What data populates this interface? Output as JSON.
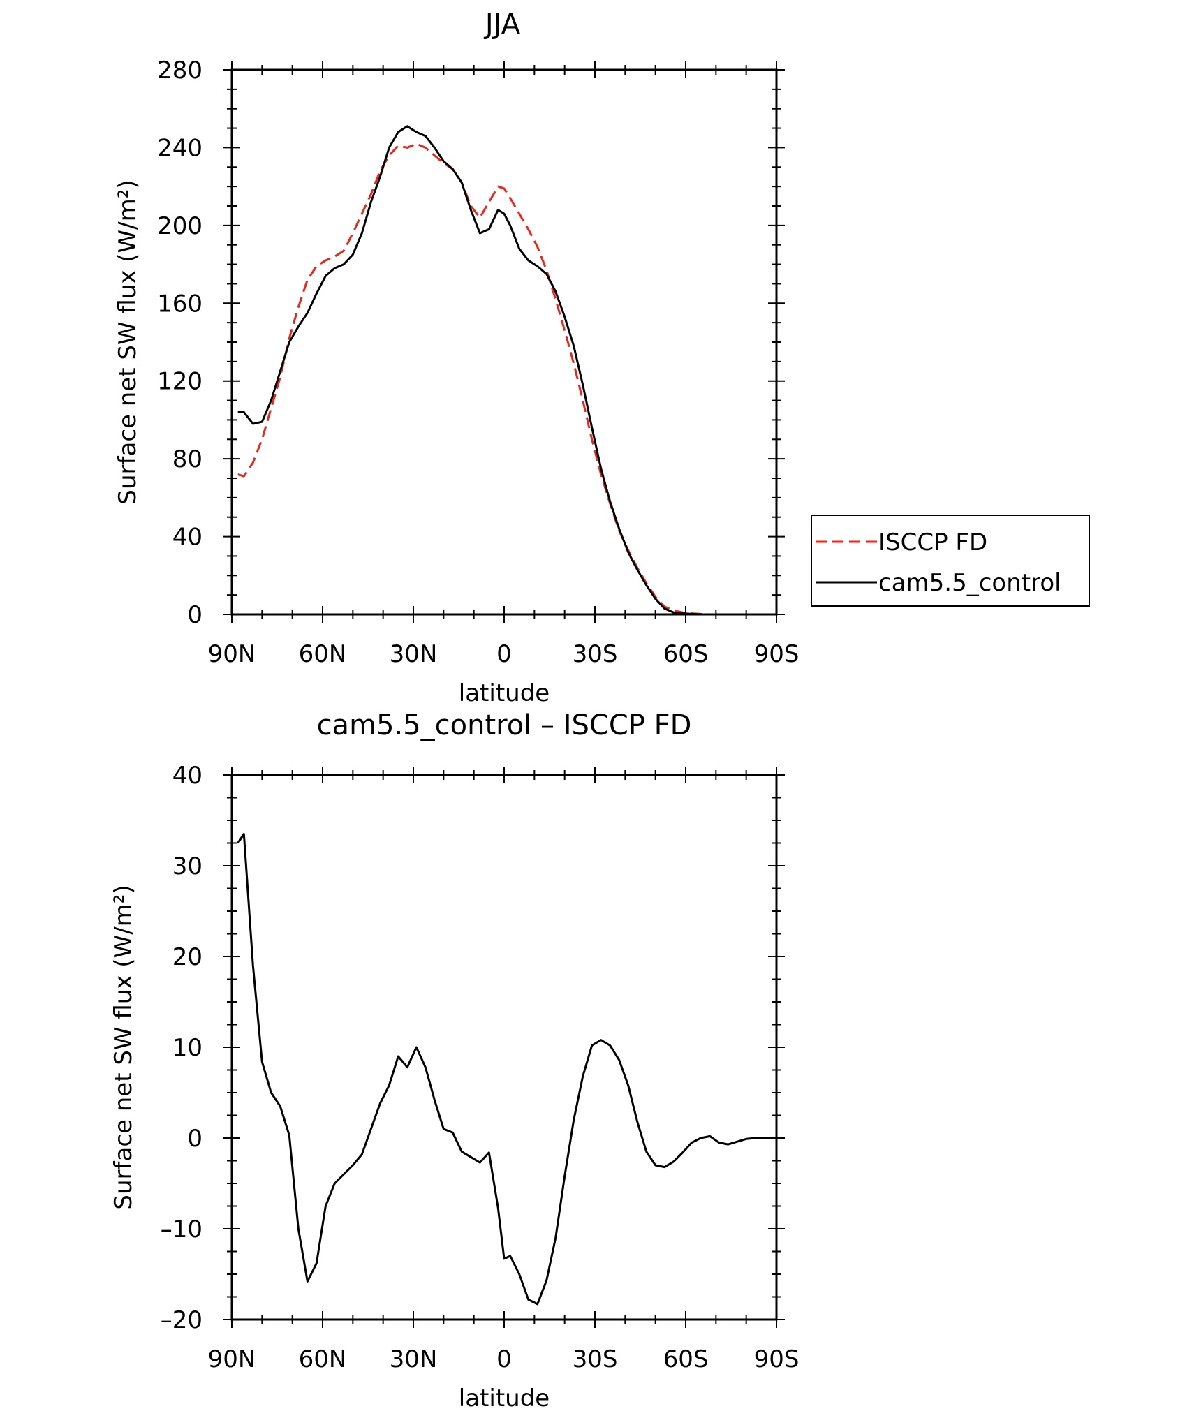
{
  "chart_data": [
    {
      "type": "line",
      "title": "JJA",
      "xlabel": "latitude",
      "ylabel": "Surface net SW flux (W/m²)",
      "xlim": [
        90,
        -90
      ],
      "ylim": [
        0,
        280
      ],
      "x_ticks": [
        90,
        60,
        30,
        0,
        -30,
        -60,
        -90
      ],
      "x_tick_labels": [
        "90N",
        "60N",
        "30N",
        "0",
        "30S",
        "60S",
        "90S"
      ],
      "y_ticks": [
        0,
        40,
        80,
        120,
        160,
        200,
        240,
        280
      ],
      "y_tick_labels": [
        "0",
        "40",
        "80",
        "120",
        "160",
        "200",
        "240",
        "280"
      ],
      "legend_position": "outside-right",
      "series": [
        {
          "name": "ISCCP FD",
          "color": "#e8261c",
          "dash": "dashed",
          "x": [
            88,
            86,
            83,
            80,
            77,
            74,
            71,
            68,
            65,
            62,
            59,
            56,
            53,
            50,
            47,
            44,
            41,
            38,
            35,
            32,
            29,
            26,
            23,
            20,
            17,
            14,
            11,
            8,
            5,
            2,
            0,
            -2,
            -5,
            -8,
            -11,
            -14,
            -17,
            -20,
            -23,
            -26,
            -29,
            -32,
            -35,
            -38,
            -41,
            -44,
            -47,
            -50,
            -53,
            -56,
            -59,
            -62,
            -65,
            -68,
            -71,
            -74,
            -77,
            -80,
            -83,
            -86,
            -88
          ],
          "values": [
            72,
            71,
            78,
            90,
            106,
            122,
            142,
            158,
            172,
            179,
            182,
            184,
            187,
            196,
            206,
            216,
            228,
            236,
            241,
            240,
            242,
            240,
            236,
            232,
            229,
            222,
            210,
            204,
            212,
            220,
            219,
            214,
            206,
            198,
            189,
            177,
            162,
            146,
            129,
            110,
            90,
            72,
            57,
            43,
            33,
            24,
            16,
            9,
            4,
            2,
            1,
            0.5,
            0.2,
            0,
            0,
            0,
            0,
            0,
            0,
            0,
            0
          ]
        },
        {
          "name": "cam5.5_control",
          "color": "#000000",
          "dash": "solid",
          "x": [
            88,
            86,
            83,
            80,
            77,
            74,
            71,
            68,
            65,
            62,
            59,
            56,
            53,
            50,
            47,
            44,
            41,
            38,
            35,
            32,
            29,
            26,
            23,
            20,
            17,
            14,
            11,
            8,
            5,
            2,
            0,
            -2,
            -5,
            -8,
            -11,
            -14,
            -17,
            -20,
            -23,
            -26,
            -29,
            -32,
            -35,
            -38,
            -41,
            -44,
            -47,
            -50,
            -53,
            -56,
            -59,
            -62,
            -65,
            -68,
            -71,
            -74,
            -77,
            -80,
            -83,
            -86,
            -88
          ],
          "values": [
            104,
            104,
            98,
            99,
            110,
            125,
            140,
            148,
            155,
            165,
            174,
            178,
            180,
            185,
            196,
            212,
            225,
            240,
            248,
            251,
            248,
            246,
            240,
            233,
            229,
            222,
            208,
            196,
            198,
            208,
            206,
            200,
            188,
            182,
            179,
            175,
            166,
            153,
            138,
            118,
            96,
            75,
            58,
            44,
            32,
            23,
            15,
            8,
            3,
            1,
            0.5,
            0.2,
            0,
            0,
            0,
            0,
            0,
            0,
            0,
            0,
            0
          ]
        }
      ]
    },
    {
      "type": "line",
      "title": "cam5.5_control – ISCCP FD",
      "xlabel": "latitude",
      "ylabel": "Surface net SW flux (W/m²)",
      "xlim": [
        90,
        -90
      ],
      "ylim": [
        -20,
        40
      ],
      "x_ticks": [
        90,
        60,
        30,
        0,
        -30,
        -60,
        -90
      ],
      "x_tick_labels": [
        "90N",
        "60N",
        "30N",
        "0",
        "30S",
        "60S",
        "90S"
      ],
      "y_ticks": [
        -20,
        -10,
        0,
        10,
        20,
        30,
        40
      ],
      "y_tick_labels": [
        "–20",
        "–10",
        "0",
        "10",
        "20",
        "30",
        "40"
      ],
      "series": [
        {
          "name": "cam5.5_control – ISCCP FD",
          "color": "#000000",
          "dash": "solid",
          "x": [
            88,
            86,
            83,
            80,
            77,
            74,
            71,
            68,
            65,
            62,
            59,
            56,
            53,
            50,
            47,
            44,
            41,
            38,
            35,
            32,
            29,
            26,
            23,
            20,
            17,
            14,
            11,
            8,
            5,
            2,
            0,
            -2,
            -5,
            -8,
            -11,
            -14,
            -17,
            -20,
            -23,
            -26,
            -29,
            -32,
            -35,
            -38,
            -41,
            -44,
            -47,
            -50,
            -53,
            -56,
            -59,
            -62,
            -65,
            -68,
            -71,
            -74,
            -77,
            -80,
            -83,
            -86,
            -88
          ],
          "values": [
            32.5,
            33.5,
            19,
            8.4,
            5,
            3.5,
            0.3,
            -10,
            -15.8,
            -13.8,
            -7.5,
            -5,
            -4,
            -3,
            -1.8,
            1,
            3.8,
            5.8,
            9,
            7.8,
            10,
            7.8,
            4.2,
            1,
            0.6,
            -1.5,
            -2.1,
            -2.7,
            -1.6,
            -7.7,
            -13.3,
            -13,
            -15,
            -17.8,
            -18.3,
            -15.7,
            -11,
            -4.2,
            2,
            6.8,
            10.2,
            10.8,
            10.2,
            8.6,
            5.8,
            1.8,
            -1.5,
            -3,
            -3.2,
            -2.6,
            -1.6,
            -0.5,
            0,
            0.2,
            -0.5,
            -0.7,
            -0.4,
            -0.1,
            0,
            0,
            0
          ]
        }
      ]
    }
  ]
}
